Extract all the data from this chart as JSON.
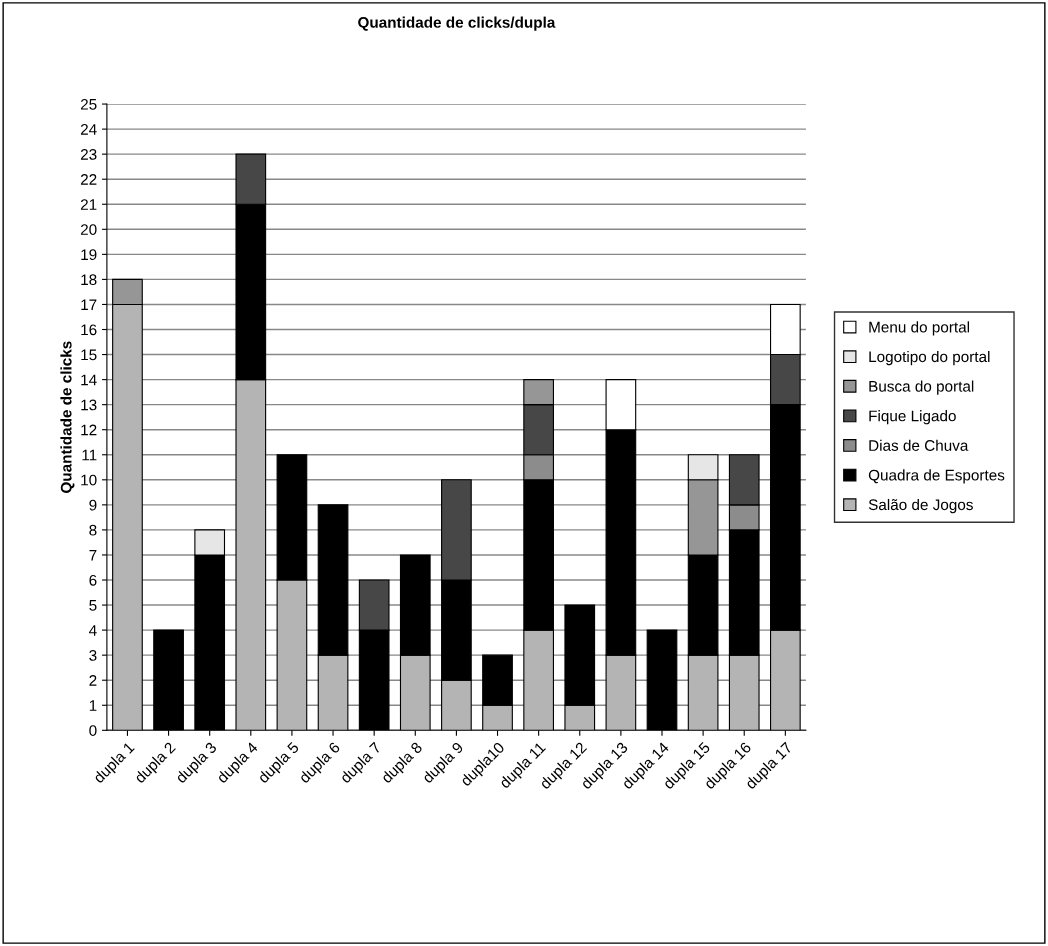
{
  "chart_data": {
    "type": "bar",
    "stacked": true,
    "title": "Quantidade de clicks/dupla",
    "ylabel": "Quantidade de clicks",
    "categories": [
      "dupla 1",
      "dupla 2",
      "dupla 3",
      "dupla 4",
      "dupla 5",
      "dupla 6",
      "dupla 7",
      "dupla 8",
      "dupla 9",
      "dupla10",
      "dupla 11",
      "dupla 12",
      "dupla 13",
      "dupla 14",
      "dupla 15",
      "dupla 16",
      "dupla 17"
    ],
    "series": [
      {
        "name": "Salão de Jogos",
        "color": "#b4b4b4",
        "values": [
          17,
          0,
          0,
          14,
          6,
          3,
          0,
          3,
          2,
          1,
          4,
          1,
          3,
          0,
          3,
          3,
          4
        ]
      },
      {
        "name": "Quadra de Esportes",
        "color": "#000000",
        "values": [
          0,
          4,
          7,
          7,
          5,
          6,
          4,
          4,
          4,
          2,
          6,
          4,
          9,
          4,
          4,
          5,
          9
        ]
      },
      {
        "name": "Dias de Chuva",
        "color": "#8c8c8c",
        "values": [
          0,
          0,
          0,
          0,
          0,
          0,
          0,
          0,
          0,
          0,
          1,
          0,
          0,
          0,
          0,
          1,
          0
        ]
      },
      {
        "name": "Fique Ligado",
        "color": "#474747",
        "values": [
          0,
          0,
          0,
          2,
          0,
          0,
          2,
          0,
          4,
          0,
          2,
          0,
          0,
          0,
          0,
          2,
          2
        ]
      },
      {
        "name": "Busca do portal",
        "color": "#969696",
        "values": [
          1,
          0,
          0,
          0,
          0,
          0,
          0,
          0,
          0,
          0,
          1,
          0,
          0,
          0,
          3,
          0,
          0
        ]
      },
      {
        "name": "Logotipo do portal",
        "color": "#e6e6e6",
        "values": [
          0,
          0,
          1,
          0,
          0,
          0,
          0,
          0,
          0,
          0,
          0,
          0,
          0,
          0,
          1,
          0,
          0
        ]
      },
      {
        "name": "Menu do portal",
        "color": "#ffffff",
        "values": [
          0,
          0,
          0,
          0,
          0,
          0,
          0,
          0,
          0,
          0,
          0,
          0,
          2,
          0,
          0,
          0,
          2
        ]
      }
    ],
    "ylim": [
      0,
      25
    ],
    "yticks": [
      0,
      1,
      2,
      3,
      4,
      5,
      6,
      7,
      8,
      9,
      10,
      11,
      12,
      13,
      14,
      15,
      16,
      17,
      18,
      19,
      20,
      21,
      22,
      23,
      24,
      25
    ],
    "grid": "y",
    "legend": "right"
  }
}
